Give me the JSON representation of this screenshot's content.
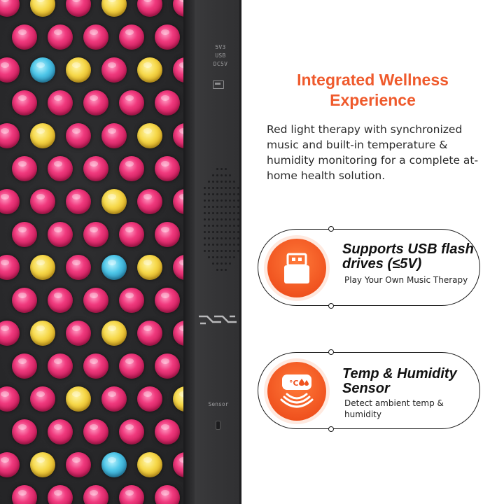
{
  "device": {
    "port_labels": [
      "5V3",
      "USB",
      "DC5V"
    ],
    "sensor_label": "Sensor",
    "led_rows": [
      "rararrrr",
      "rrrrr",
      "rbararr",
      "rrrrr",
      "rarrar",
      "rrrrr",
      "rrrarrr",
      "rrrrr",
      "rarbarr",
      "rrrrr",
      "rararrr",
      "rrrrr",
      "rrarrar",
      "rrrrr",
      "rarbarr",
      "rrrrr"
    ],
    "colors": {
      "red": "#f03a7e",
      "amber": "#f6d84a",
      "blue": "#4ec6e8"
    }
  },
  "content": {
    "heading": "Integrated Wellness Experience",
    "description": "Red light therapy with synchronized music and built-in temperature & humidity monitoring for a complete at-home health solution.",
    "accent_color": "#ef5a2c"
  },
  "features": [
    {
      "icon": "usb-drive-icon",
      "title": "Supports USB flash drives (≤5V)",
      "subtitle": "Play Your Own Music Therapy"
    },
    {
      "icon": "temp-humidity-sensor-icon",
      "title": "Temp & Humidity Sensor",
      "subtitle": "Detect ambient temp & humidity"
    }
  ]
}
